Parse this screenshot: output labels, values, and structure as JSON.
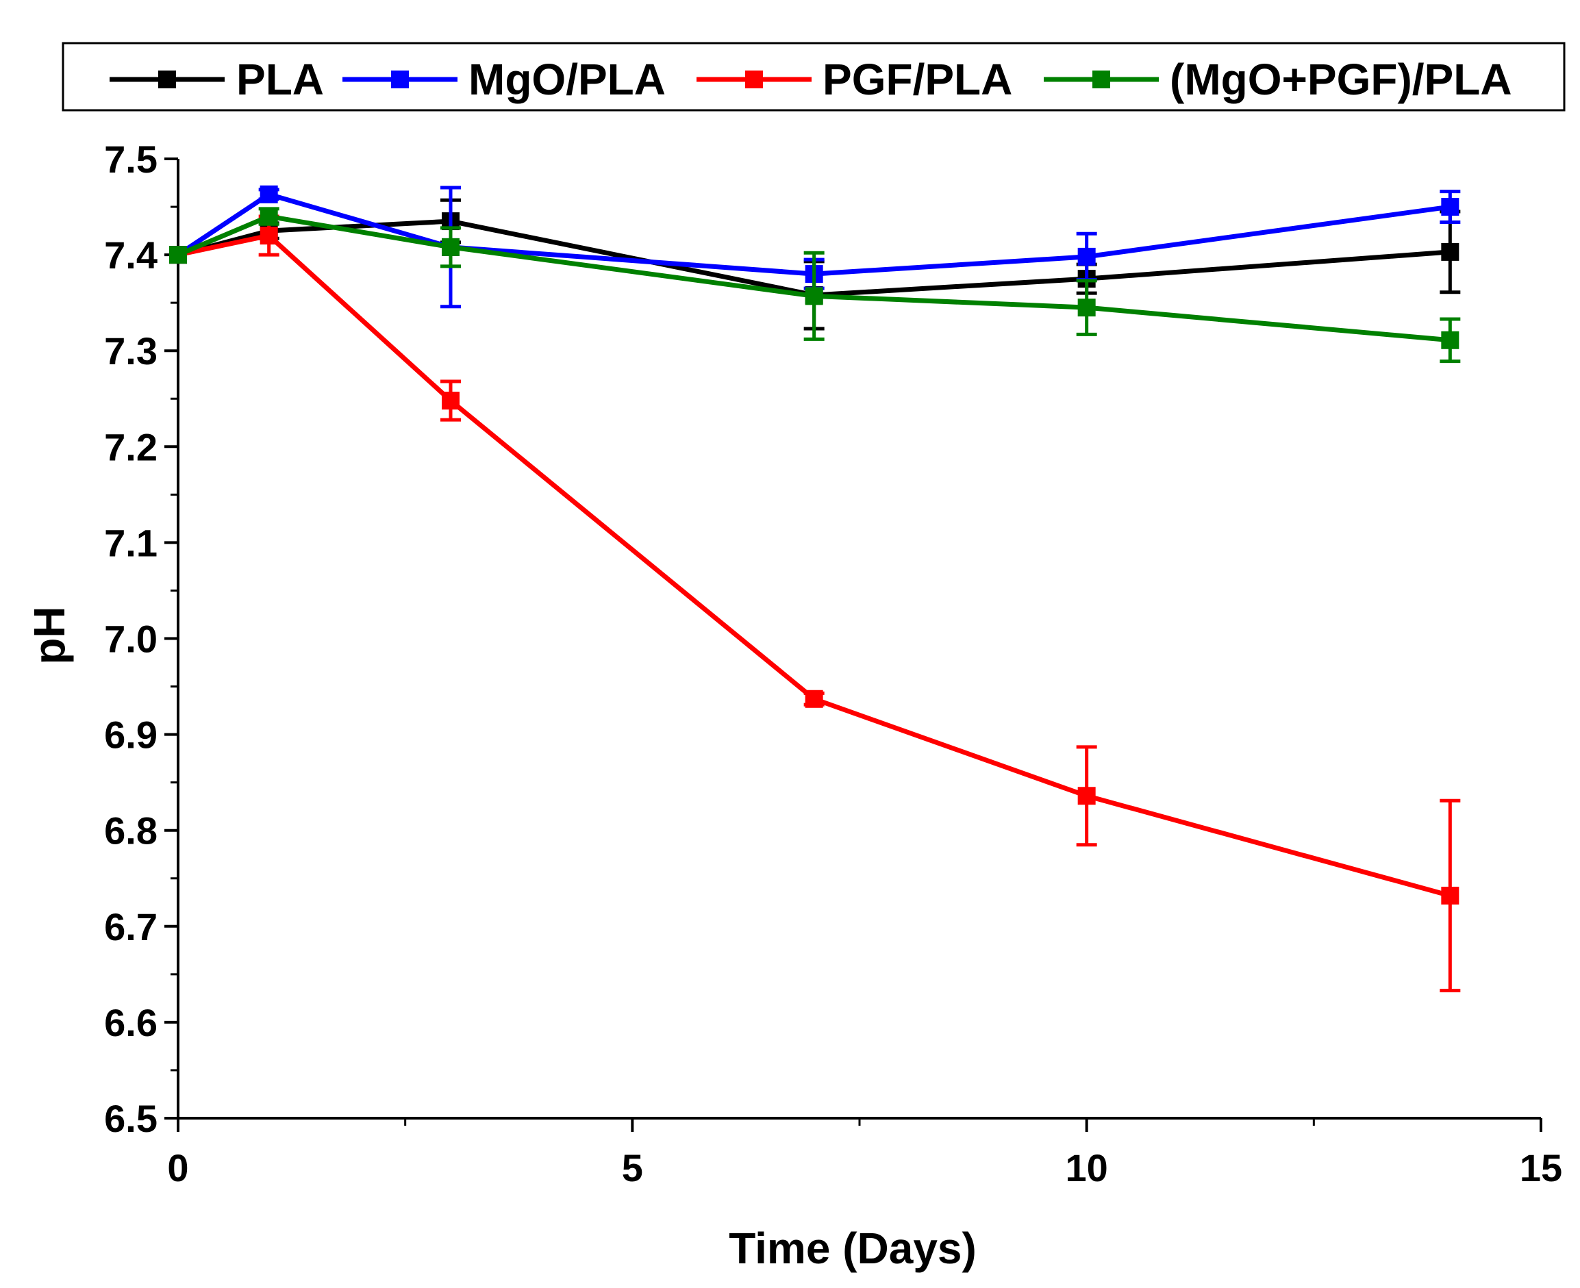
{
  "chart_data": {
    "type": "line",
    "title": "",
    "xlabel": "Time (Days)",
    "ylabel": "pH",
    "xlim": [
      0,
      15
    ],
    "ylim": [
      6.5,
      7.5
    ],
    "x_ticks": [
      "0",
      "5",
      "10",
      "15"
    ],
    "y_ticks": [
      "6.5",
      "6.6",
      "6.7",
      "6.8",
      "6.9",
      "7.0",
      "7.1",
      "7.2",
      "7.3",
      "7.4",
      "7.5"
    ],
    "grid": false,
    "legend_position": "top",
    "x": [
      0,
      1,
      3,
      7,
      10,
      14
    ],
    "series": [
      {
        "name": "PLA",
        "color": "#000000",
        "values": [
          7.4,
          7.425,
          7.435,
          7.358,
          7.375,
          7.403
        ],
        "error": [
          0,
          0.008,
          0.022,
          0.035,
          0.015,
          0.042
        ]
      },
      {
        "name": "MgO/PLA",
        "color": "#0000ff",
        "values": [
          7.4,
          7.463,
          7.408,
          7.38,
          7.398,
          7.45
        ],
        "error": [
          0,
          0.005,
          0.062,
          0.015,
          0.024,
          0.016
        ]
      },
      {
        "name": "PGF/PLA",
        "color": "#ff0000",
        "values": [
          7.4,
          7.42,
          7.248,
          6.937,
          6.836,
          6.732
        ],
        "error": [
          0,
          0.02,
          0.02,
          0.006,
          0.051,
          0.099
        ]
      },
      {
        "name": "(MgO+PGF)/PLA",
        "color": "#008000",
        "values": [
          7.4,
          7.44,
          7.408,
          7.357,
          7.345,
          7.311
        ],
        "error": [
          0,
          0.008,
          0.02,
          0.045,
          0.028,
          0.022
        ]
      }
    ]
  }
}
